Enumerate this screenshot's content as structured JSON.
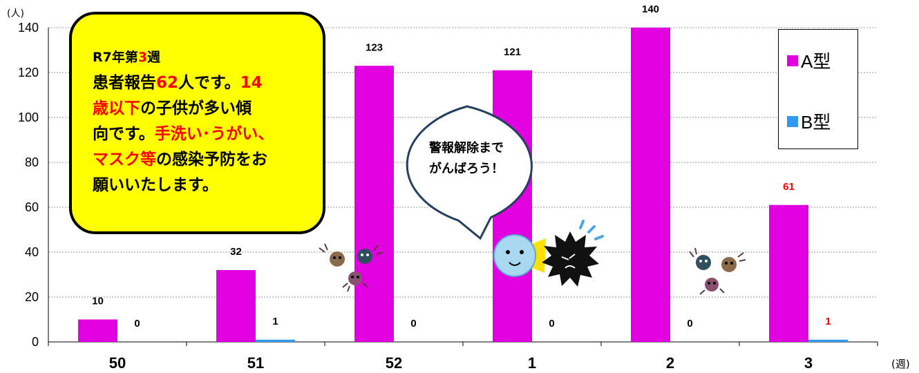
{
  "chart_data": {
    "type": "bar",
    "categories": [
      "50",
      "51",
      "52",
      "1",
      "2",
      "3"
    ],
    "series": [
      {
        "name": "A型",
        "color": "#e000e0",
        "values": [
          10,
          32,
          123,
          121,
          140,
          61
        ]
      },
      {
        "name": "B型",
        "color": "#3399ee",
        "values": [
          0,
          1,
          0,
          0,
          0,
          1
        ]
      }
    ],
    "label_colors": [
      [
        "#000000",
        "#000000",
        "#000000",
        "#000000",
        "#000000",
        "#ff0000"
      ],
      [
        "#000000",
        "#000000",
        "#000000",
        "#000000",
        "#000000",
        "#ff0000"
      ]
    ],
    "ylim": [
      0,
      140
    ],
    "yticks": [
      0,
      20,
      40,
      60,
      80,
      100,
      120,
      140
    ],
    "ylabel": "(人)",
    "xlabel": "(週)",
    "grid": true,
    "legend": "top-right"
  },
  "note": {
    "line1_a": "R7年第",
    "line1_b": "3",
    "line1_c": "週",
    "line2_a": "患者報告",
    "line2_b": "62",
    "line2_c": "人です。",
    "line2_d": "14",
    "line3_a": "歳以下",
    "line3_b": "の子供が多い傾",
    "line4_a": "向です。",
    "line4_b": "手洗い･うがい、",
    "line5_a": "マスク等",
    "line5_b": "の感染予防をお",
    "line6": "願いいたします。"
  },
  "bubble": {
    "line1": "警報解除まで",
    "line2": "がんばろう！"
  }
}
